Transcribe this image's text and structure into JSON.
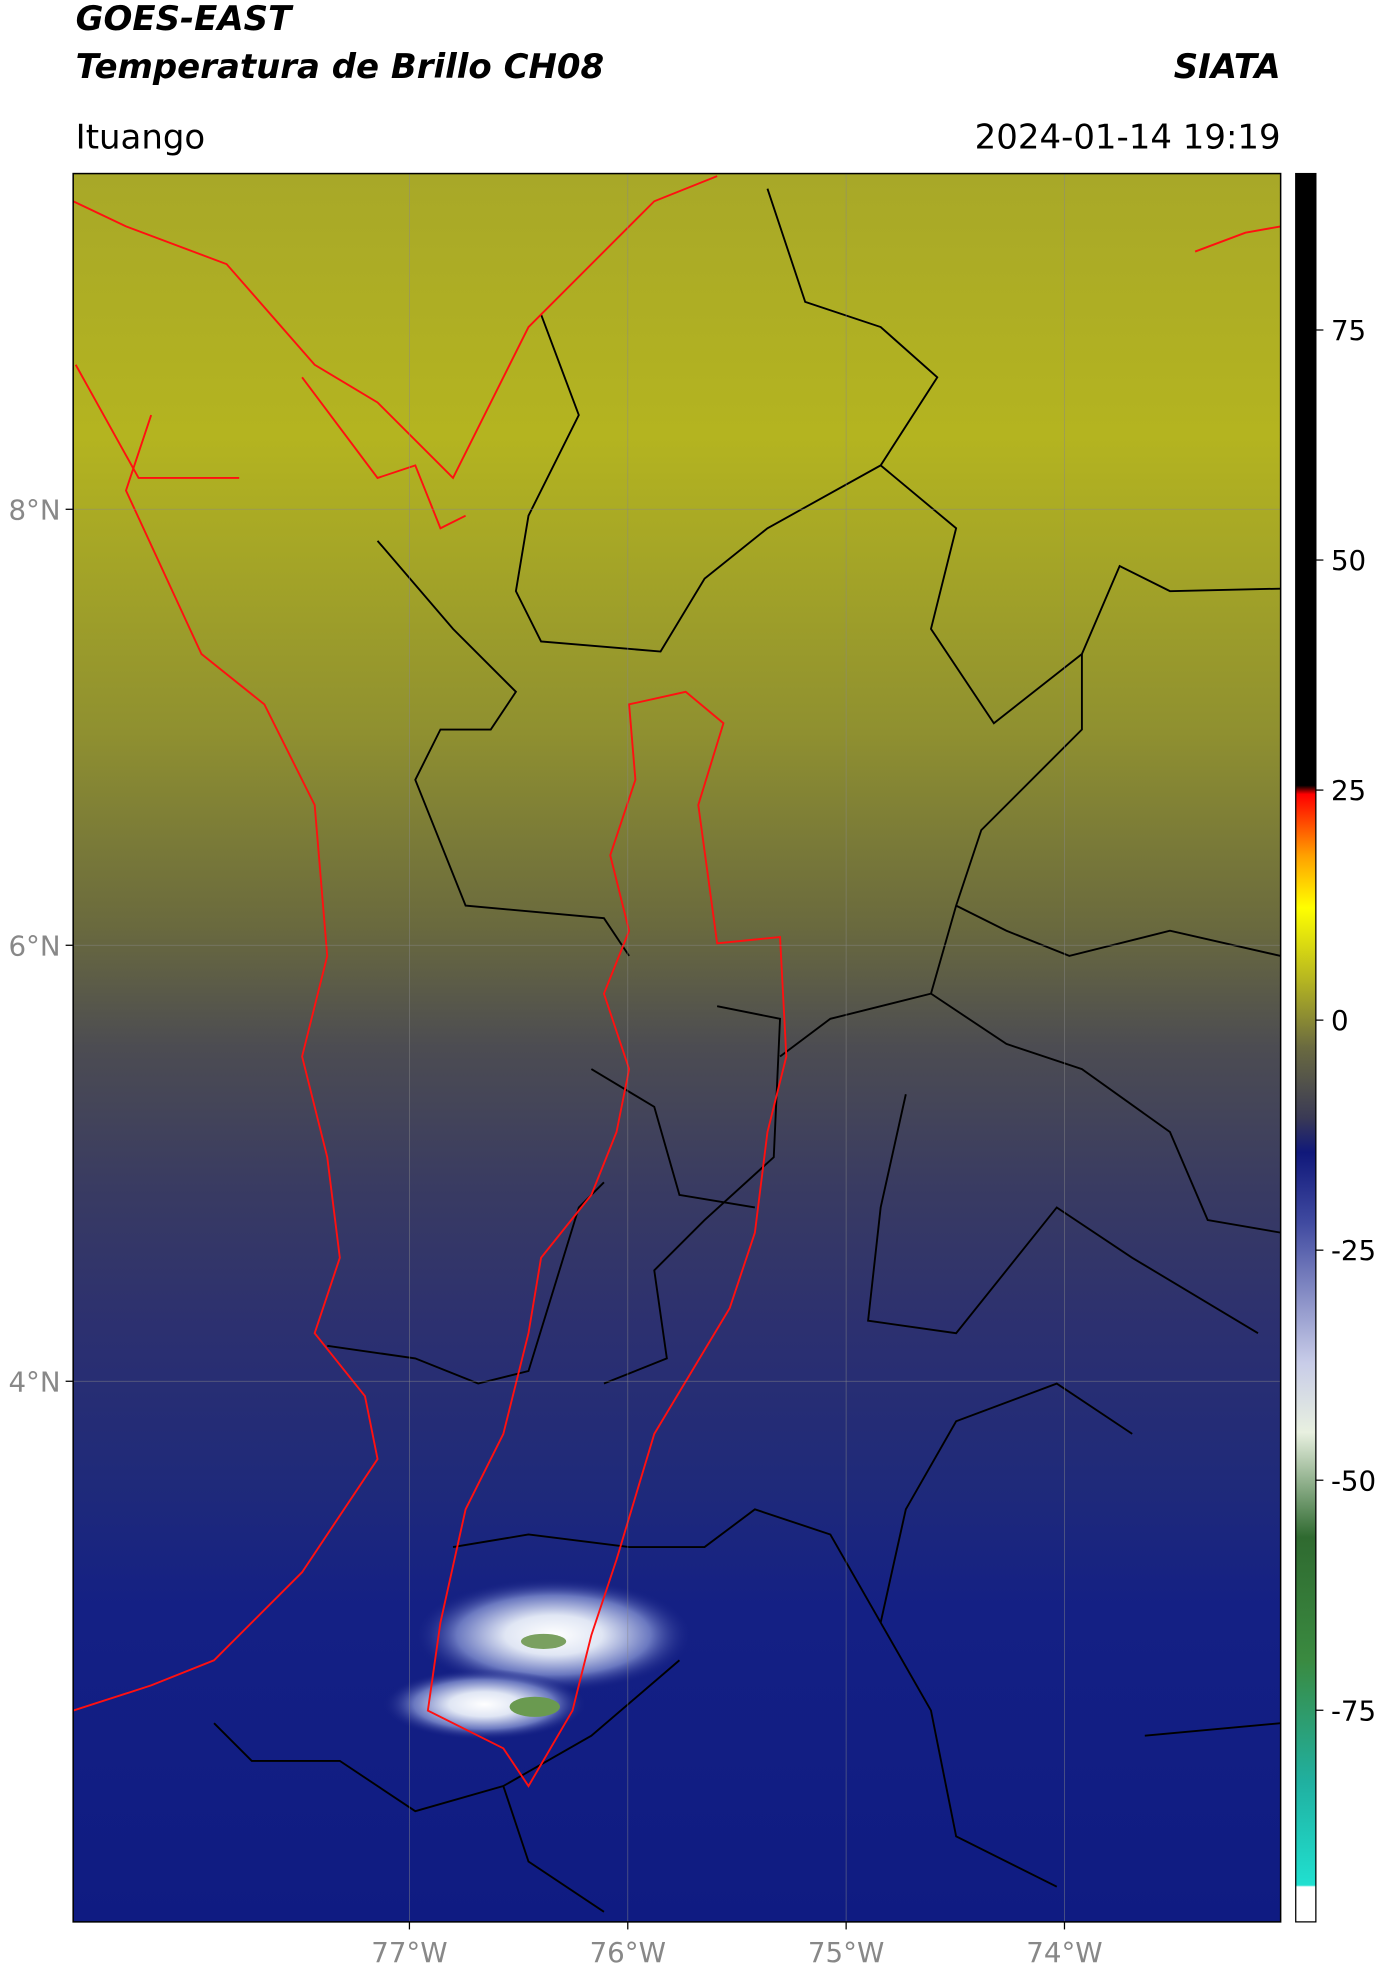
{
  "header": {
    "title": "GOES-EAST",
    "subtitle": "Temperatura de Brillo CH08",
    "source": "SIATA",
    "location": "Ituango",
    "datetime": "2024-01-14 19:19"
  },
  "map": {
    "xlim": [
      -78.54,
      -73.01
    ],
    "ylim": [
      1.52,
      9.54
    ],
    "xticks": [
      {
        "value": -77,
        "label": "77°W"
      },
      {
        "value": -76,
        "label": "76°W"
      },
      {
        "value": -75,
        "label": "75°W"
      },
      {
        "value": -74,
        "label": "74°W"
      }
    ],
    "yticks": [
      {
        "value": 8,
        "label": "8°N"
      },
      {
        "value": 6,
        "label": "6°N"
      },
      {
        "value": 4,
        "label": "4°N"
      }
    ],
    "grid": true
  },
  "colorbar": {
    "lim": [
      -98,
      92
    ],
    "ticks": [
      75,
      50,
      25,
      0,
      -25,
      -50,
      -75
    ]
  }
}
